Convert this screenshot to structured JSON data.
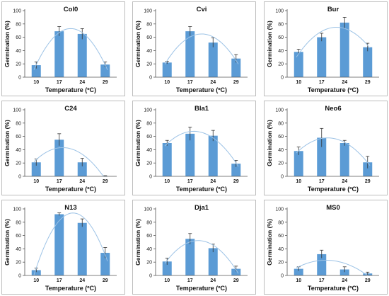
{
  "figure": {
    "ylabel": "Germination (%)",
    "xlabel": "Temperature (ºC)",
    "categories": [
      "10",
      "17",
      "24",
      "29"
    ],
    "y_ticks": [
      "0",
      "20",
      "40",
      "60",
      "80",
      "100"
    ]
  },
  "colors": {
    "bar": "#5b9bd5",
    "trend": "#9dc3e6",
    "error": "#333333",
    "axis": "#555555",
    "panel_border": "#bdbdbd"
  },
  "chart_data": [
    {
      "type": "bar",
      "title": "Col0",
      "categories": [
        "10",
        "17",
        "24",
        "29"
      ],
      "values": [
        18,
        69,
        65,
        19
      ],
      "errors": [
        5,
        7,
        8,
        4
      ],
      "ylim": [
        0,
        100
      ],
      "trend": "quadratic",
      "xlabel": "Temperature (ºC)",
      "ylabel": "Germination (%)"
    },
    {
      "type": "bar",
      "title": "Cvi",
      "categories": [
        "10",
        "17",
        "24",
        "29"
      ],
      "values": [
        22,
        69,
        52,
        28
      ],
      "errors": [
        2,
        7,
        7,
        6
      ],
      "ylim": [
        0,
        100
      ],
      "trend": "quadratic",
      "xlabel": "Temperature (ºC)",
      "ylabel": "Germination (%)"
    },
    {
      "type": "bar",
      "title": "Bur",
      "categories": [
        "10",
        "17",
        "24",
        "29"
      ],
      "values": [
        38,
        60,
        82,
        45
      ],
      "errors": [
        4,
        6,
        8,
        6
      ],
      "ylim": [
        0,
        100
      ],
      "trend": "quadratic",
      "xlabel": "Temperature (ºC)",
      "ylabel": "Germination (%)"
    },
    {
      "type": "bar",
      "title": "C24",
      "categories": [
        "10",
        "17",
        "24",
        "29"
      ],
      "values": [
        21,
        55,
        21,
        0
      ],
      "errors": [
        5,
        9,
        6,
        1
      ],
      "ylim": [
        0,
        100
      ],
      "trend": "quadratic",
      "xlabel": "Temperature (ºC)",
      "ylabel": "Germination (%)"
    },
    {
      "type": "bar",
      "title": "Bla1",
      "categories": [
        "10",
        "17",
        "24",
        "29"
      ],
      "values": [
        50,
        64,
        61,
        19
      ],
      "errors": [
        4,
        10,
        8,
        5
      ],
      "ylim": [
        0,
        100
      ],
      "trend": "quadratic",
      "xlabel": "Temperature (ºC)",
      "ylabel": "Germination (%)"
    },
    {
      "type": "bar",
      "title": "Neo6",
      "categories": [
        "10",
        "17",
        "24",
        "29"
      ],
      "values": [
        38,
        58,
        50,
        21
      ],
      "errors": [
        6,
        14,
        4,
        9
      ],
      "ylim": [
        0,
        100
      ],
      "trend": "quadratic",
      "xlabel": "Temperature (ºC)",
      "ylabel": "Germination (%)"
    },
    {
      "type": "bar",
      "title": "N13",
      "categories": [
        "10",
        "17",
        "24",
        "29"
      ],
      "values": [
        8,
        92,
        79,
        34
      ],
      "errors": [
        3,
        2,
        6,
        8
      ],
      "ylim": [
        0,
        100
      ],
      "trend": "quadratic",
      "xlabel": "Temperature (ºC)",
      "ylabel": "Germination (%)"
    },
    {
      "type": "bar",
      "title": "Dja1",
      "categories": [
        "10",
        "17",
        "24",
        "29"
      ],
      "values": [
        21,
        55,
        41,
        10
      ],
      "errors": [
        5,
        8,
        6,
        4
      ],
      "ylim": [
        0,
        100
      ],
      "trend": "quadratic",
      "xlabel": "Temperature (ºC)",
      "ylabel": "Germination (%)"
    },
    {
      "type": "bar",
      "title": "MS0",
      "categories": [
        "10",
        "17",
        "24",
        "29"
      ],
      "values": [
        10,
        32,
        9,
        3
      ],
      "errors": [
        3,
        6,
        4,
        2
      ],
      "ylim": [
        0,
        100
      ],
      "trend": "quadratic",
      "xlabel": "Temperature (ºC)",
      "ylabel": "Germination (%)"
    }
  ]
}
